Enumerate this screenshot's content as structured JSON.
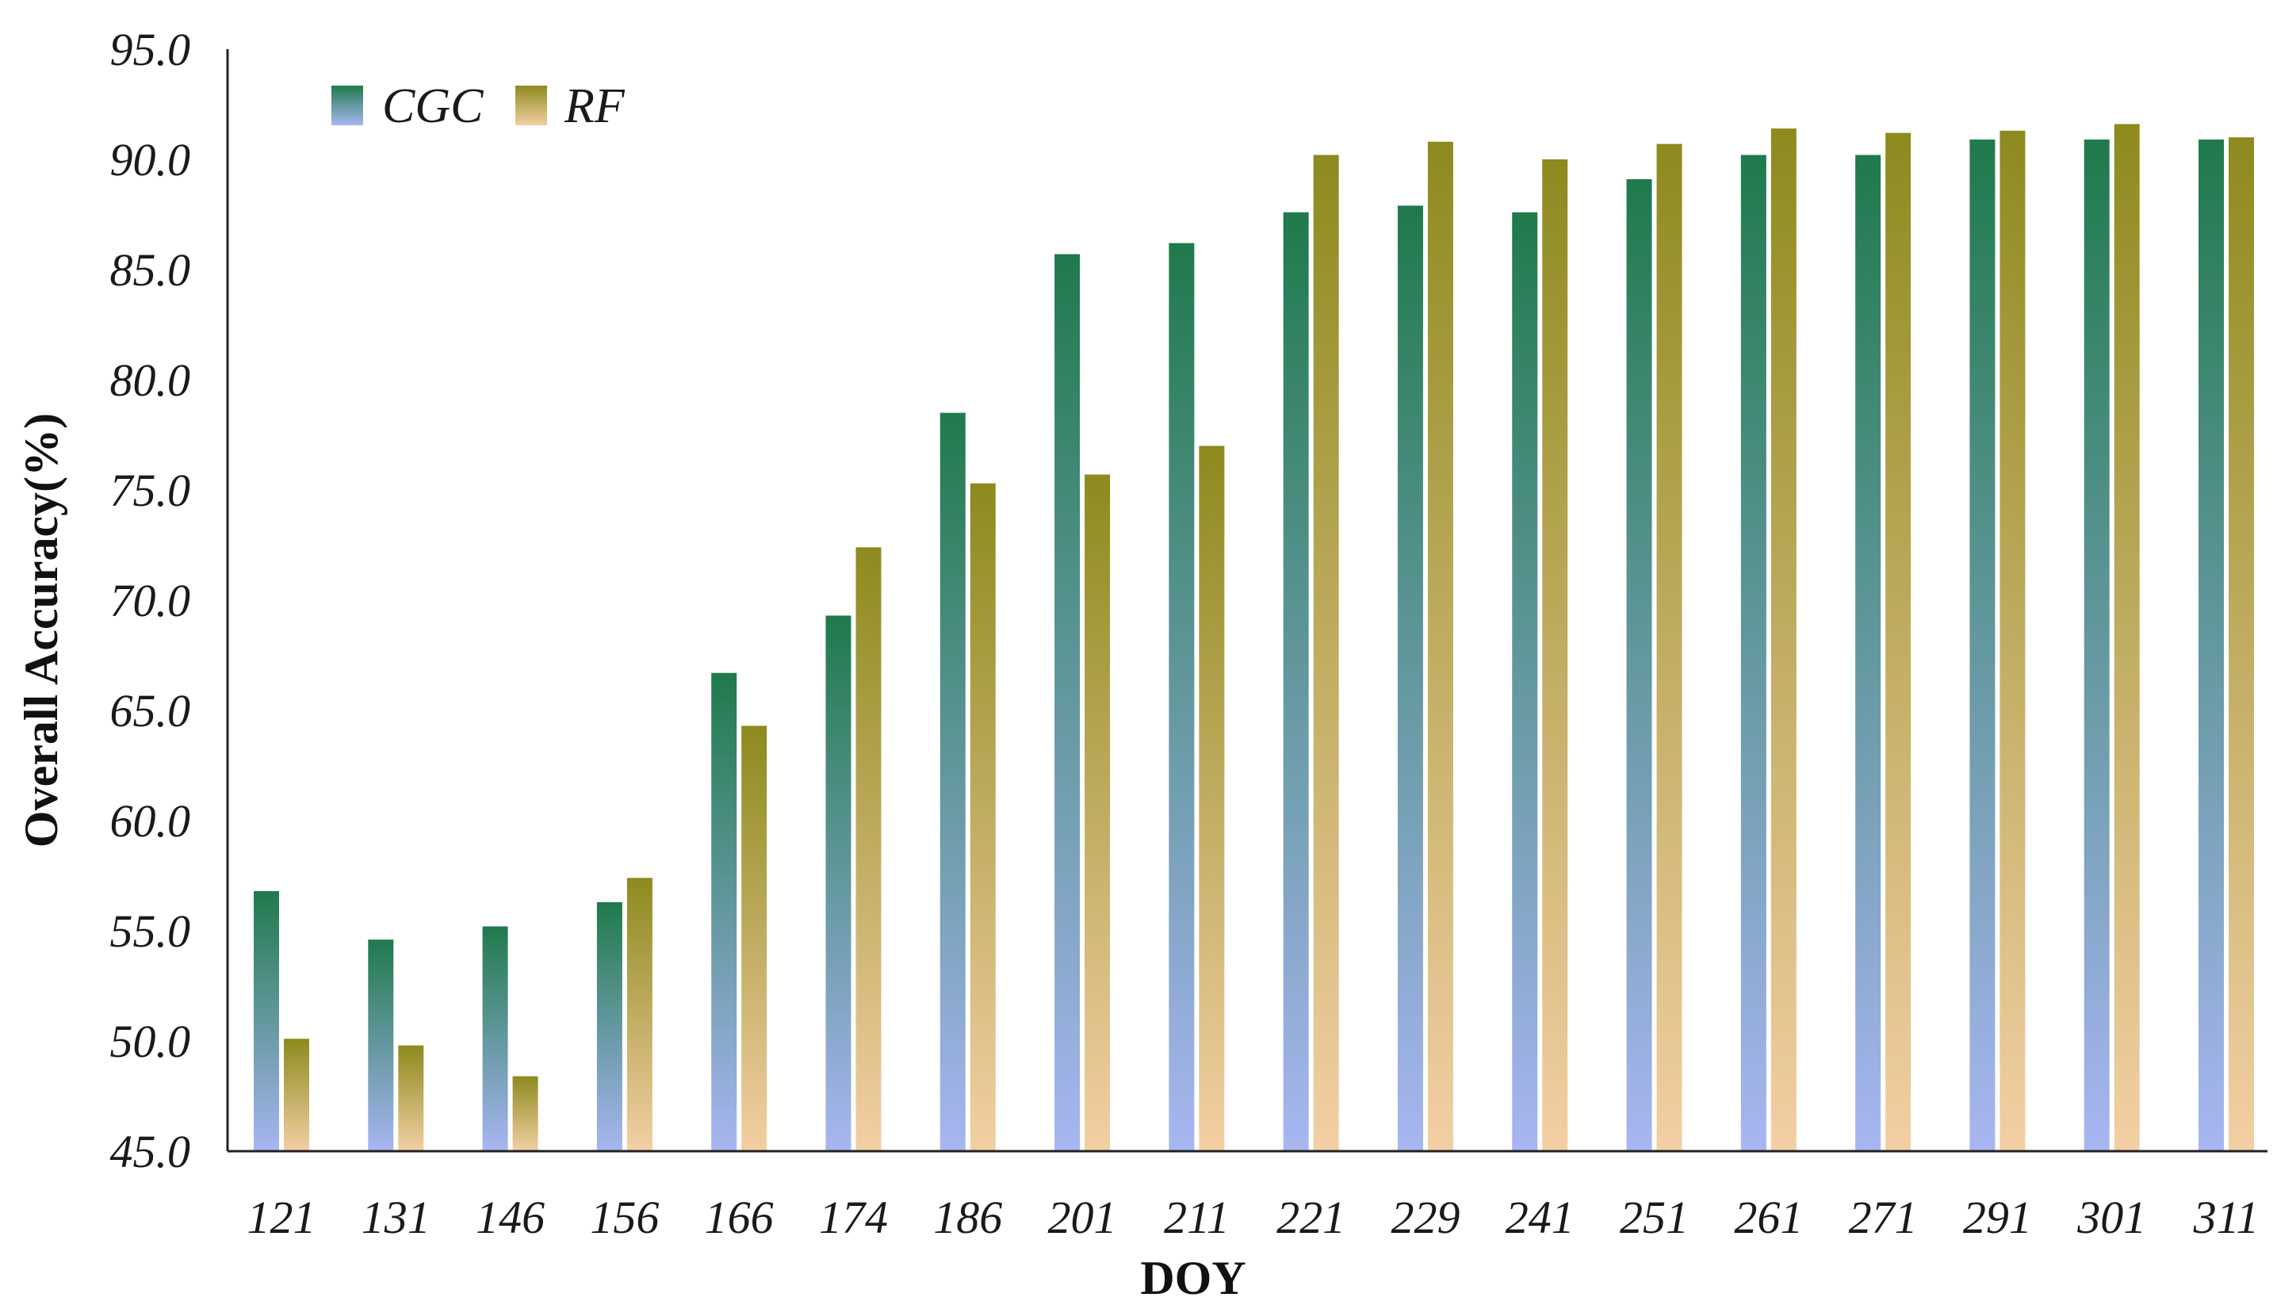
{
  "chart_data": {
    "type": "bar",
    "title": "",
    "xlabel": "DOY",
    "ylabel": "Overall Accuracy(%)",
    "ylim": [
      45.0,
      95.0
    ],
    "yticks": [
      "45.0",
      "50.0",
      "55.0",
      "60.0",
      "65.0",
      "70.0",
      "75.0",
      "80.0",
      "85.0",
      "90.0",
      "95.0"
    ],
    "categories": [
      "121",
      "131",
      "146",
      "156",
      "166",
      "174",
      "186",
      "201",
      "211",
      "221",
      "229",
      "241",
      "251",
      "261",
      "271",
      "291",
      "301",
      "311"
    ],
    "series": [
      {
        "name": "CGC",
        "values": [
          56.8,
          54.6,
          55.2,
          56.3,
          66.7,
          69.3,
          78.5,
          85.7,
          86.2,
          87.6,
          87.9,
          87.6,
          89.1,
          90.2,
          90.2,
          90.9,
          90.9,
          90.9
        ],
        "color_top": "#1f7a4c",
        "color_bottom": "#a8b6f2"
      },
      {
        "name": "RF",
        "values": [
          50.1,
          49.8,
          48.4,
          57.4,
          64.3,
          72.4,
          75.3,
          75.7,
          77.0,
          90.2,
          90.8,
          90.0,
          90.7,
          91.4,
          91.2,
          91.3,
          91.6,
          91.0
        ],
        "color_top": "#8d8a1e",
        "color_bottom": "#f3cfa4"
      }
    ],
    "legend_position": "top-left",
    "grid": false
  }
}
